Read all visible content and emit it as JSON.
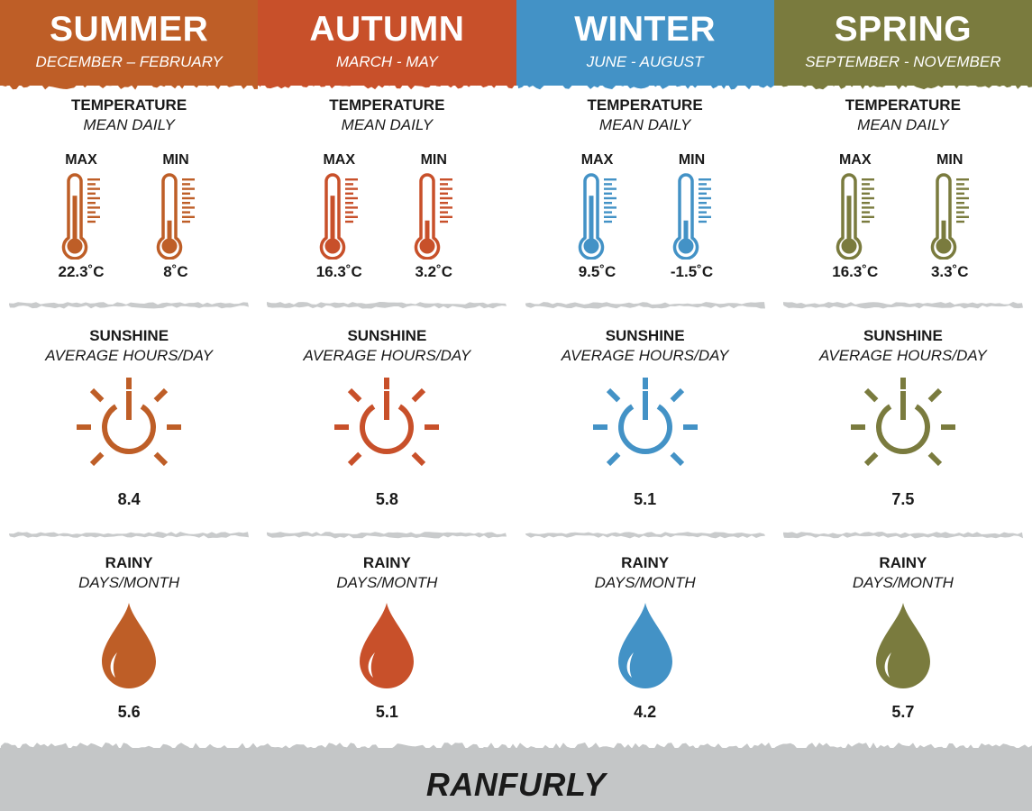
{
  "seasons": [
    {
      "name": "SUMMER",
      "months": "DECEMBER – FEBRUARY",
      "color": "#be5e27",
      "temperature": {
        "title": "TEMPERATURE",
        "subtitle": "MEAN DAILY",
        "max_label": "MAX",
        "min_label": "MIN",
        "max_value": "22.3˚C",
        "min_value": "8˚C",
        "max_level": 0.8,
        "min_level": 0.35
      },
      "sunshine": {
        "title": "SUNSHINE",
        "subtitle": "AVERAGE HOURS/DAY",
        "value": "8.4",
        "icon": "sun-power-icon"
      },
      "rain": {
        "title": "RAINY",
        "subtitle": "DAYS/MONTH",
        "value": "5.6",
        "icon": "raindrop-icon"
      }
    },
    {
      "name": "AUTUMN",
      "months": "MARCH - MAY",
      "color": "#c8502a",
      "temperature": {
        "title": "TEMPERATURE",
        "subtitle": "MEAN DAILY",
        "max_label": "MAX",
        "min_label": "MIN",
        "max_value": "16.3˚C",
        "min_value": "3.2˚C",
        "max_level": 0.8,
        "min_level": 0.35
      },
      "sunshine": {
        "title": "SUNSHINE",
        "subtitle": "AVERAGE HOURS/DAY",
        "value": "5.8",
        "icon": "sun-power-icon"
      },
      "rain": {
        "title": "RAINY",
        "subtitle": "DAYS/MONTH",
        "value": "5.1",
        "icon": "raindrop-icon"
      }
    },
    {
      "name": "WINTER",
      "months": "JUNE - AUGUST",
      "color": "#4392c6",
      "temperature": {
        "title": "TEMPERATURE",
        "subtitle": "MEAN DAILY",
        "max_label": "MAX",
        "min_label": "MIN",
        "max_value": "9.5˚C",
        "min_value": "-1.5˚C",
        "max_level": 0.8,
        "min_level": 0.35
      },
      "sunshine": {
        "title": "SUNSHINE",
        "subtitle": "AVERAGE HOURS/DAY",
        "value": "5.1",
        "icon": "sun-power-icon"
      },
      "rain": {
        "title": "RAINY",
        "subtitle": "DAYS/MONTH",
        "value": "4.2",
        "icon": "raindrop-icon"
      }
    },
    {
      "name": "SPRING",
      "months": "SEPTEMBER - NOVEMBER",
      "color": "#7a7b3e",
      "temperature": {
        "title": "TEMPERATURE",
        "subtitle": "MEAN DAILY",
        "max_label": "MAX",
        "min_label": "MIN",
        "max_value": "16.3˚C",
        "min_value": "3.3˚C",
        "max_level": 0.8,
        "min_level": 0.35
      },
      "sunshine": {
        "title": "SUNSHINE",
        "subtitle": "AVERAGE HOURS/DAY",
        "value": "7.5",
        "icon": "sun-power-icon"
      },
      "rain": {
        "title": "RAINY",
        "subtitle": "DAYS/MONTH",
        "value": "5.7",
        "icon": "raindrop-icon"
      }
    }
  ],
  "footer": {
    "location": "RANFURLY",
    "color": "#c4c6c7"
  },
  "divider_color": "#c9cbcc"
}
